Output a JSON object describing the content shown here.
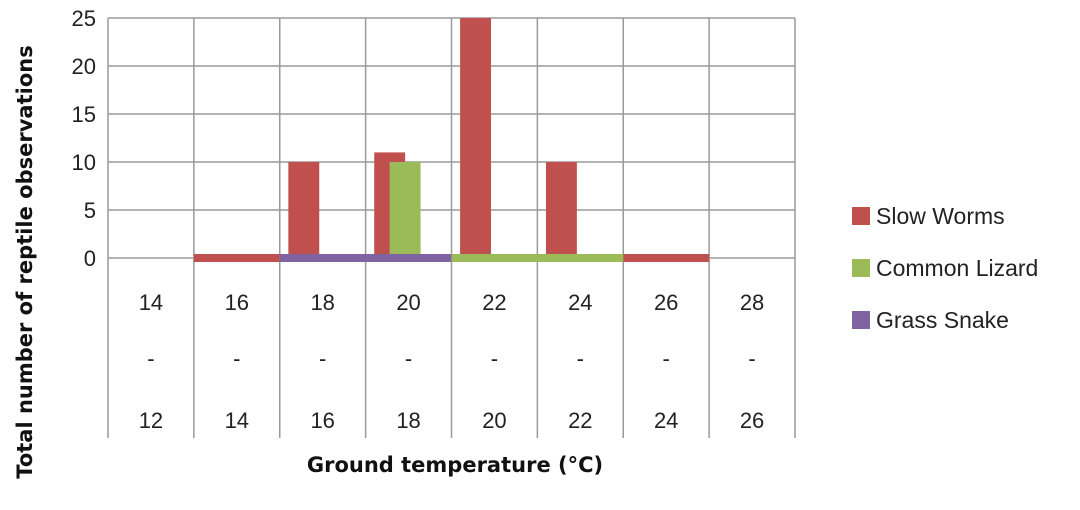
{
  "chart_data": {
    "type": "bar",
    "ylabel": "Total number of reptile observations",
    "xlabel": "Ground temperature (°C)",
    "ylim": [
      0,
      25
    ],
    "yticks": [
      0,
      5,
      10,
      15,
      20,
      25
    ],
    "grid": true,
    "legend_position": "right",
    "categories": [
      [
        "14",
        "-",
        "12"
      ],
      [
        "16",
        "-",
        "14"
      ],
      [
        "18",
        "-",
        "16"
      ],
      [
        "20",
        "-",
        "18"
      ],
      [
        "22",
        "-",
        "20"
      ],
      [
        "24",
        "-",
        "22"
      ],
      [
        "26",
        "-",
        "24"
      ],
      [
        "28",
        "-",
        "26"
      ]
    ],
    "series": [
      {
        "name": "Slow Worms",
        "color": "#C0504D",
        "values": [
          0,
          0,
          10,
          11,
          25,
          10,
          0,
          0
        ]
      },
      {
        "name": "Common Lizard",
        "color": "#9BBB59",
        "values": [
          0,
          0,
          0,
          10,
          0,
          0,
          0,
          0
        ]
      },
      {
        "name": "Grass Snake",
        "color": "#8064A2",
        "values": [
          0,
          0,
          0,
          0,
          0,
          0,
          0,
          0
        ]
      }
    ]
  }
}
